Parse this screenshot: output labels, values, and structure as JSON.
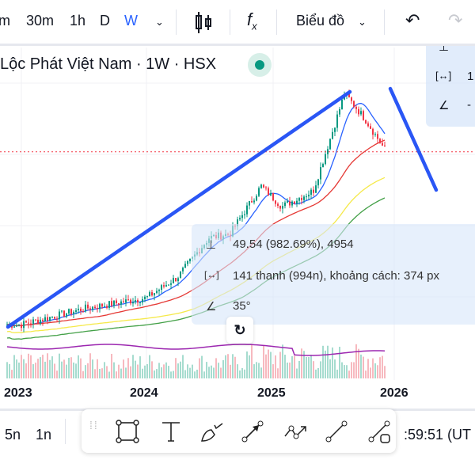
{
  "toolbar": {
    "intervals": [
      "m",
      "30m",
      "1h",
      "D",
      "W"
    ],
    "active_interval": "W",
    "chart_type_label": "Biểu đồ",
    "accent": "#2962ff"
  },
  "legend": {
    "title": "Lộc Phát Việt Nam · 1W · HSX",
    "status_color": "#089981"
  },
  "measure": {
    "price_change": "49.54 (982.69%), 4954",
    "bars": "141 thanh (994n), khoảng cách: 374 px",
    "angle": "35°"
  },
  "info_panel": {
    "bars_partial": "1",
    "angle_partial": "-"
  },
  "bottom": {
    "ranges": [
      "5n",
      "1n"
    ],
    "time": ":59:51 (UT"
  },
  "drawing_tools": [
    "rectangle",
    "text",
    "brush",
    "arrow",
    "path",
    "trend-line",
    "line-with-label"
  ],
  "chart_data": {
    "type": "candlestick",
    "scale": "log",
    "x_ticks": [
      "2023",
      "2024",
      "2025",
      "2026"
    ],
    "close_keypoints": [
      {
        "date": "2023-01",
        "close": 5.0
      },
      {
        "date": "2023-07",
        "close": 5.9
      },
      {
        "date": "2024-01",
        "close": 6.6
      },
      {
        "date": "2024-04",
        "close": 8.2
      },
      {
        "date": "2024-07",
        "close": 12.3
      },
      {
        "date": "2024-09",
        "close": 12.8
      },
      {
        "date": "2024-12",
        "close": 21
      },
      {
        "date": "2025-02",
        "close": 17
      },
      {
        "date": "2025-05",
        "close": 20
      },
      {
        "date": "2025-07",
        "close": 39
      },
      {
        "date": "2025-08",
        "close": 55
      },
      {
        "date": "2025-10",
        "close": 42
      },
      {
        "date": "2025-12",
        "close": 30
      }
    ],
    "last_price_line": 30,
    "moving_average_colors": [
      "#2962ff",
      "#e53935",
      "#f5e94a",
      "#43a047"
    ],
    "volume_ma_color": "#9c27b0",
    "up_color": "#089981",
    "down_color": "#f23645"
  }
}
